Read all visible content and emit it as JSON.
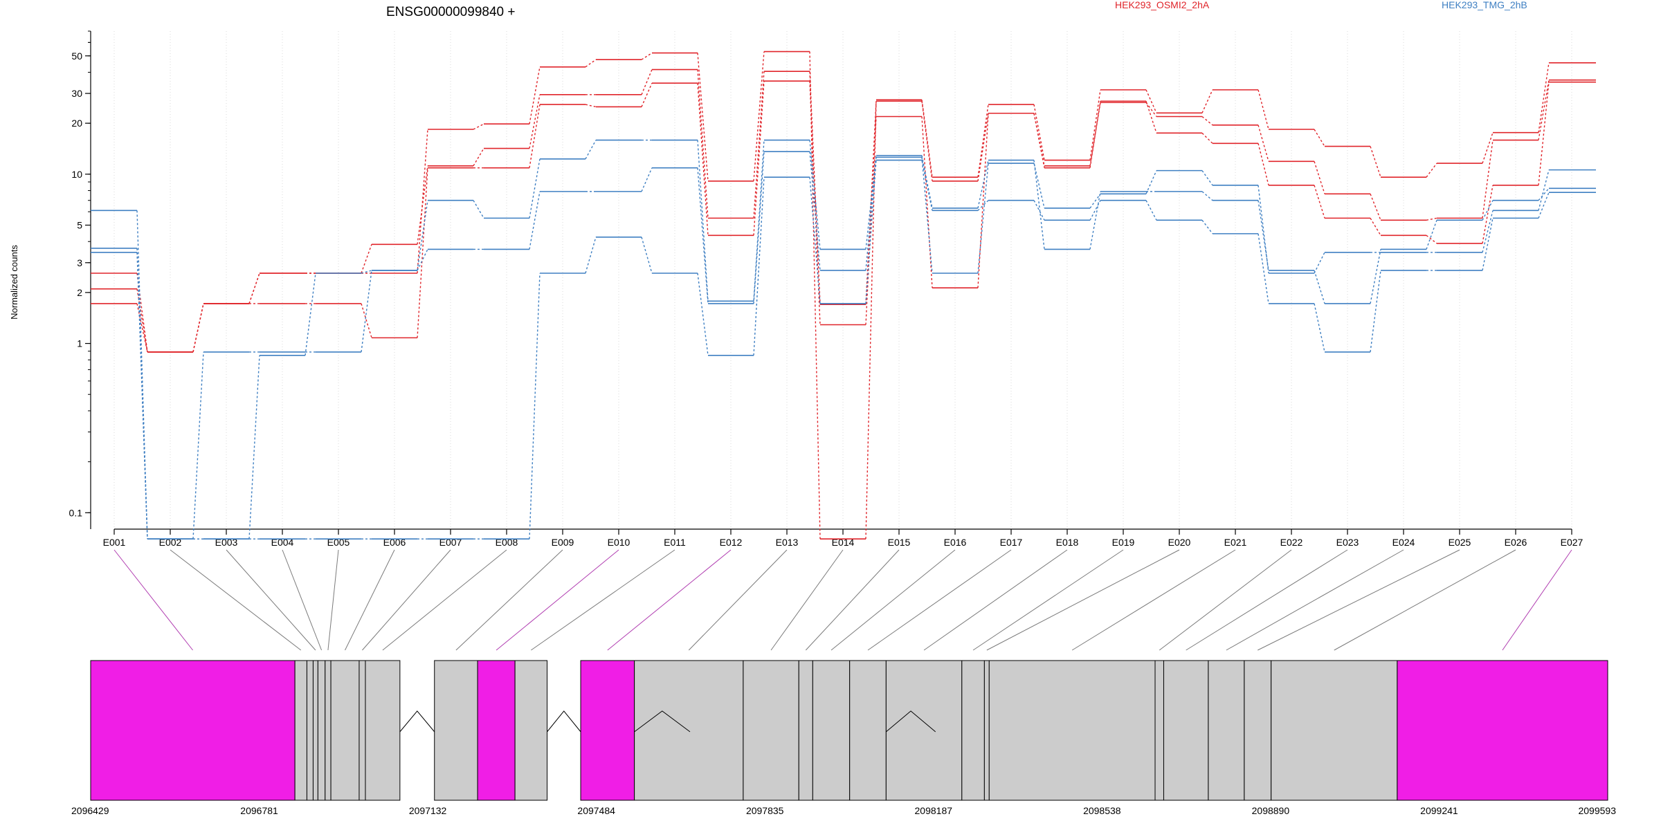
{
  "chart_data": {
    "type": "line",
    "title": "ENSG00000099840 +",
    "ylabel": "Normalized counts",
    "xlabel": "",
    "yscale": "log",
    "ylim": [
      0.08,
      70
    ],
    "grid": "vertical dotted lines at each exon",
    "legend_placement": "top",
    "yticks": [
      {
        "value": 0.1,
        "label": "0.1"
      },
      {
        "value": 1,
        "label": "1"
      },
      {
        "value": 2,
        "label": "2"
      },
      {
        "value": 3,
        "label": "3"
      },
      {
        "value": 5,
        "label": "5"
      },
      {
        "value": 10,
        "label": "10"
      },
      {
        "value": 20,
        "label": "20"
      },
      {
        "value": 30,
        "label": "30"
      },
      {
        "value": 50,
        "label": "50"
      }
    ],
    "categories": [
      "E001",
      "E002",
      "E003",
      "E004",
      "E005",
      "E006",
      "E007",
      "E008",
      "E009",
      "E010",
      "E011",
      "E012",
      "E013",
      "E014",
      "E015",
      "E016",
      "E017",
      "E018",
      "E019",
      "E020",
      "E021",
      "E022",
      "E023",
      "E024",
      "E025",
      "E026",
      "E027"
    ],
    "groups": [
      {
        "name": "HEK293_OSMI2_2hA",
        "color": "#e0242a"
      },
      {
        "name": "HEK293_TMG_2hB",
        "color": "#3e7fc2"
      }
    ],
    "series": [
      {
        "group": 0,
        "values": [
          2.1,
          0.89,
          1.72,
          1.72,
          1.72,
          1.08,
          10.9,
          10.9,
          25.8,
          25.0,
          34.5,
          4.35,
          35.5,
          1.29,
          21.9,
          2.13,
          22.9,
          10.9,
          27.0,
          17.5,
          15.2,
          8.6,
          5.5,
          4.35,
          3.9,
          8.6,
          35.0
        ]
      },
      {
        "group": 0,
        "values": [
          2.6,
          0.89,
          1.72,
          2.6,
          2.6,
          2.6,
          18.4,
          19.8,
          43.0,
          47.5,
          52.0,
          9.1,
          53.0,
          0.07,
          27.5,
          9.6,
          25.8,
          12.1,
          31.5,
          23.0,
          31.5,
          18.4,
          14.6,
          9.6,
          11.6,
          17.6,
          45.5
        ]
      },
      {
        "group": 0,
        "values": [
          1.72,
          0.89,
          1.72,
          2.6,
          2.6,
          3.85,
          11.2,
          14.2,
          29.5,
          29.5,
          41.5,
          5.5,
          40.5,
          1.7,
          27.0,
          9.1,
          22.9,
          11.2,
          26.5,
          21.9,
          19.5,
          11.9,
          7.65,
          5.35,
          5.5,
          15.9,
          36.0
        ]
      },
      {
        "group": 1,
        "values": [
          6.1,
          0.07,
          0.07,
          0.07,
          0.07,
          0.07,
          0.07,
          0.07,
          2.6,
          4.25,
          2.6,
          0.85,
          9.6,
          1.72,
          12.1,
          6.1,
          7.0,
          5.35,
          7.0,
          5.35,
          4.45,
          1.72,
          0.89,
          2.7,
          2.7,
          5.5,
          7.8
        ]
      },
      {
        "group": 1,
        "values": [
          3.45,
          0.07,
          0.89,
          0.89,
          0.89,
          2.7,
          3.6,
          3.6,
          7.9,
          7.9,
          10.9,
          1.72,
          13.6,
          2.7,
          12.6,
          2.6,
          11.6,
          6.3,
          7.65,
          10.5,
          8.6,
          2.6,
          3.45,
          3.45,
          3.45,
          6.1,
          10.6
        ]
      },
      {
        "group": 1,
        "values": [
          3.65,
          0.07,
          0.07,
          0.85,
          2.6,
          2.7,
          7.0,
          5.5,
          12.3,
          15.9,
          15.9,
          1.78,
          15.9,
          3.6,
          12.9,
          6.3,
          12.1,
          3.6,
          7.9,
          7.9,
          7.0,
          2.7,
          1.72,
          3.6,
          5.35,
          7.0,
          8.25
        ]
      }
    ],
    "gene_model": {
      "start": 2096429,
      "end": 2099593,
      "tick_labels": [
        "2096429",
        "2096781",
        "2097132",
        "2097484",
        "2097835",
        "2098187",
        "2098538",
        "2098890",
        "2099241",
        "2099593"
      ],
      "segment_boundaries": [
        2096429,
        2096855,
        2096880,
        2096893,
        2096903,
        2096918,
        2096930,
        2096989,
        2097002,
        2097074,
        2097146,
        2097236,
        2097314,
        2097381,
        2097451,
        2097563,
        2097790,
        2097906,
        2097935,
        2098012,
        2098088,
        2098246,
        2098293,
        2098303,
        2098649,
        2098667,
        2098760,
        2098835,
        2098891,
        2099154,
        2099593
      ],
      "highlight_segments": [
        0,
        11,
        14,
        29
      ],
      "intron_gaps": [
        [
          2097074,
          2097146
        ],
        [
          2097381,
          2097451
        ],
        [
          2097563,
          2097679
        ],
        [
          2098088,
          2098191
        ]
      ],
      "highlight_color": "#f01ee6",
      "exon_color": "#cccccc"
    }
  }
}
